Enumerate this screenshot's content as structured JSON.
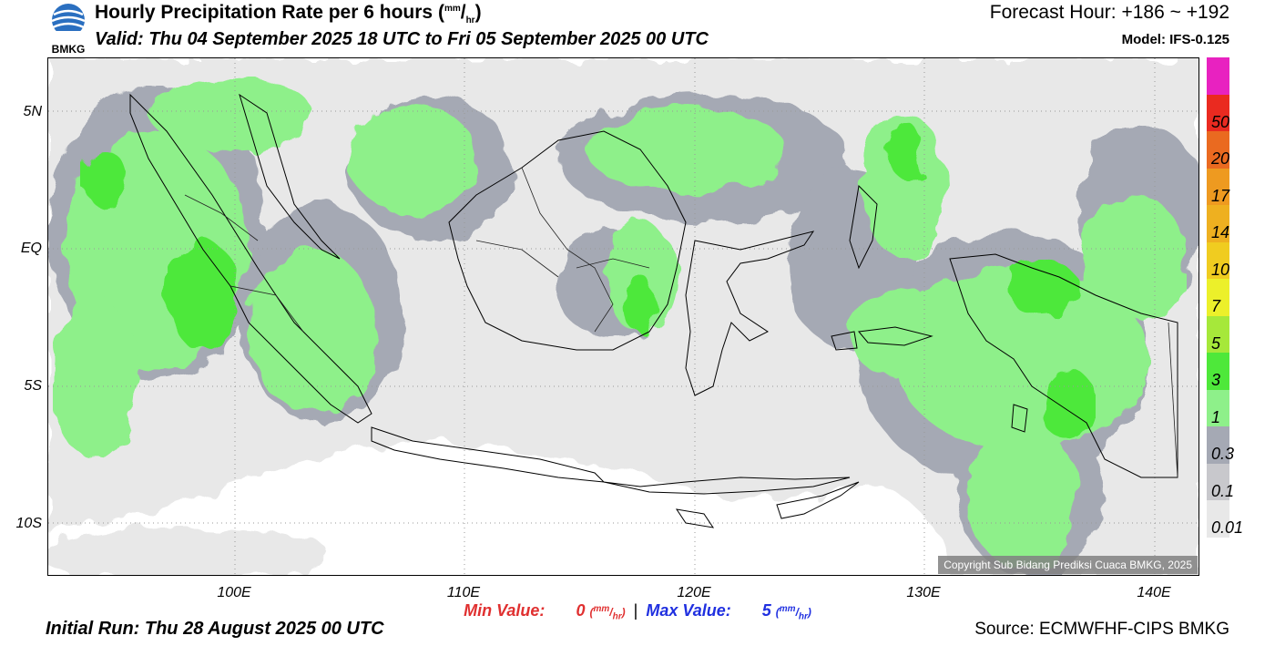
{
  "header": {
    "title": "Hourly Precipitation Rate per 6 hours",
    "title_unit_num": "mm",
    "title_unit_den": "hr",
    "valid": "Valid: Thu 04 September 2025 18 UTC to Fri 05 September 2025 00 UTC",
    "forecast_hour": "Forecast Hour: +186 ~ +192",
    "model": "Model: IFS-0.125",
    "logo_text": "BMKG"
  },
  "map": {
    "lat_labels": [
      "5N",
      "EQ",
      "5S",
      "10S"
    ],
    "lon_labels": [
      "100E",
      "110E",
      "120E",
      "130E",
      "140E"
    ],
    "copyright": "Copyright Sub Bidang Prediksi Cuaca BMKG, 2025"
  },
  "colorbar": {
    "levels": [
      "0.01",
      "0.1",
      "0.3",
      "1",
      "3",
      "5",
      "7",
      "10",
      "14",
      "17",
      "20",
      "50"
    ],
    "colors": [
      "#e8e8e8",
      "#c8c8cc",
      "#a5a9b4",
      "#8ef08a",
      "#4ee83a",
      "#a6e83a",
      "#ecf02a",
      "#f0cc20",
      "#eeb020",
      "#ee9a20",
      "#ea6a20",
      "#ea2a20",
      "#e822c0"
    ]
  },
  "footer": {
    "min_label": "Min Value:",
    "min_value": "0",
    "max_label": "Max Value:",
    "max_value": "5",
    "unit_num": "mm",
    "unit_den": "hr",
    "separator": "|",
    "initial_run": "Initial Run: Thu 28 August 2025 00 UTC",
    "source": "Source: ECMWFHF-CIPS BMKG"
  },
  "colors": {
    "min": "#e03030",
    "max": "#2030e0",
    "light_green": "#8ef08a",
    "green": "#4ee83a",
    "grey": "#a5a9b4",
    "light_grey": "#e8e8e8"
  }
}
